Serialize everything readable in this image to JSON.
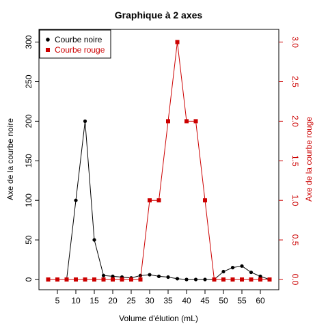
{
  "chart_data": {
    "type": "line",
    "title": "Graphique à 2 axes",
    "xlabel": "Volume d'élution (mL)",
    "ylabel_left": "Axe de la courbe noire",
    "ylabel_right": "Axe de la courbe rouge",
    "xlim": [
      0,
      65
    ],
    "ylim_left": [
      0,
      310
    ],
    "ylim_right": [
      0,
      3.1
    ],
    "x_ticks": [
      5,
      10,
      15,
      20,
      25,
      30,
      35,
      40,
      45,
      50,
      55,
      60
    ],
    "y_left_ticks": [
      0,
      50,
      100,
      150,
      200,
      250,
      300
    ],
    "y_right_ticks": [
      "0.0",
      "0.5",
      "1.0",
      "1.5",
      "2.0",
      "2.5",
      "3.0"
    ],
    "grid": false,
    "legend_position": "top-left",
    "x": [
      2.5,
      5,
      7.5,
      10,
      12.5,
      15,
      17.5,
      20,
      22.5,
      25,
      27.5,
      30,
      32.5,
      35,
      37.5,
      40,
      42.5,
      45,
      47.5,
      50,
      52.5,
      55,
      57.5,
      60,
      62.5
    ],
    "series": [
      {
        "name": "Courbe noire",
        "axis": "left",
        "color": "#000000",
        "marker": "circle",
        "values": [
          0,
          0,
          0,
          100,
          200,
          50,
          5,
          4,
          3,
          2,
          5,
          6,
          4,
          3,
          1,
          0,
          0,
          0,
          0,
          10,
          15,
          17,
          9,
          4,
          0
        ]
      },
      {
        "name": "Courbe rouge",
        "axis": "right",
        "color": "#cc0000",
        "marker": "square",
        "values": [
          0,
          0,
          0,
          0,
          0,
          0,
          0,
          0,
          0,
          0,
          0,
          1,
          1,
          2,
          3,
          2,
          2,
          1,
          0,
          0,
          0,
          0,
          0,
          0,
          0
        ]
      }
    ]
  }
}
